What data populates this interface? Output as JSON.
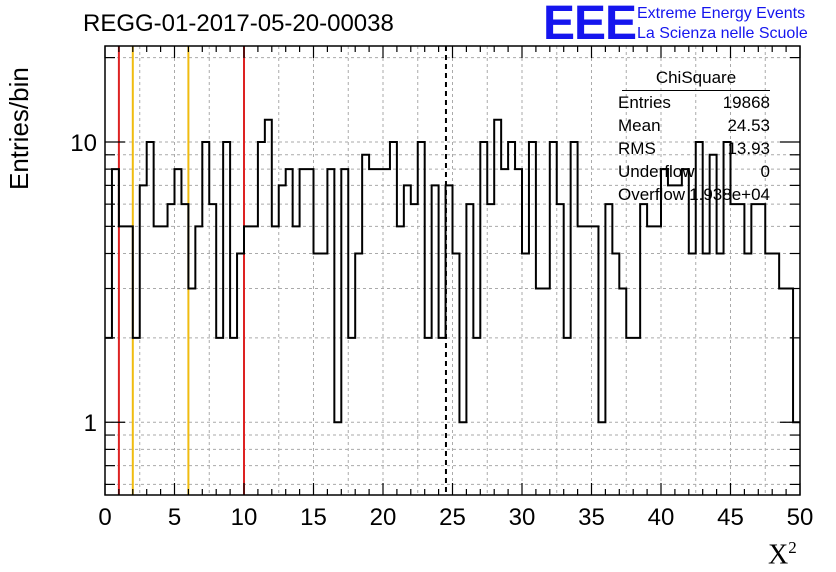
{
  "title": "REGG-01-2017-05-20-00038",
  "logo": {
    "mark": "EEE",
    "line1": "Extreme Energy Events",
    "line2": "La Scienza nelle Scuole"
  },
  "stats": {
    "header": "ChiSquare",
    "rows": [
      {
        "key": "Entries",
        "value": "19868"
      },
      {
        "key": "Mean",
        "value": "24.53"
      },
      {
        "key": "RMS",
        "value": "13.93"
      },
      {
        "key": "Underflow",
        "value": "0"
      },
      {
        "key": "Overflow",
        "value": "1.938e+04"
      }
    ]
  },
  "chart_data": {
    "type": "bar",
    "style": "step-histogram",
    "title": "REGG-01-2017-05-20-00038",
    "xlabel": "X",
    "xlabel_sup": "2",
    "ylabel": "Entries/bin",
    "xlim": [
      0,
      50
    ],
    "ylim": [
      0.55,
      22
    ],
    "yscale": "log",
    "grid": true,
    "bin_width": 0.5,
    "x_ticks": [
      0,
      5,
      10,
      15,
      20,
      25,
      30,
      35,
      40,
      45,
      50
    ],
    "y_ticks": [
      1,
      10
    ],
    "values": [
      2,
      8,
      5,
      5,
      2,
      7,
      10,
      5,
      5,
      6,
      8,
      6,
      3,
      5,
      10,
      6,
      2,
      10,
      2,
      4,
      5,
      5,
      10,
      12,
      5,
      7,
      8,
      5,
      8,
      8,
      4,
      4,
      8,
      1,
      8,
      2,
      4,
      9,
      8,
      8,
      8,
      10,
      5,
      7,
      6,
      10,
      2,
      7,
      2,
      7,
      4,
      1,
      6,
      2,
      10,
      6,
      12,
      8,
      10,
      8,
      4,
      10,
      3,
      3,
      10,
      6,
      2,
      10,
      5,
      5,
      5,
      1,
      6,
      4,
      3,
      2,
      2,
      6,
      5,
      5,
      8,
      7,
      7,
      8,
      4,
      10,
      4,
      9,
      4,
      10,
      6,
      6,
      4,
      6,
      6,
      4,
      4,
      3,
      3,
      1
    ],
    "vlines": [
      {
        "x": 1,
        "color": "#dd2222",
        "style": "solid"
      },
      {
        "x": 2,
        "color": "#f0bc10",
        "style": "solid"
      },
      {
        "x": 6,
        "color": "#f0bc10",
        "style": "solid"
      },
      {
        "x": 10,
        "color": "#dd2222",
        "style": "solid"
      },
      {
        "x": 24.53,
        "color": "#000000",
        "style": "dashed"
      }
    ]
  }
}
